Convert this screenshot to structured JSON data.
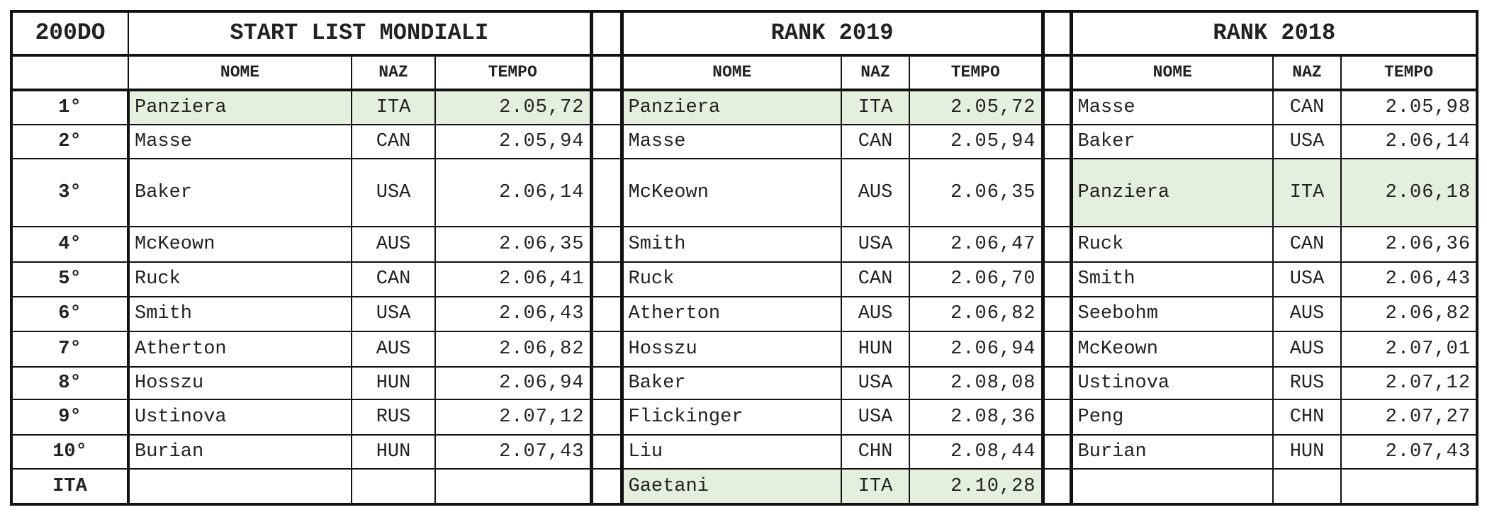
{
  "event": "200DO",
  "sections": [
    {
      "title": "START LIST MONDIALI",
      "headers": [
        "NOME",
        "NAZ",
        "TEMPO"
      ],
      "rows": [
        {
          "name": "Panziera",
          "naz": "ITA",
          "time": "2.05,72",
          "highlight": true
        },
        {
          "name": "Masse",
          "naz": "CAN",
          "time": "2.05,94",
          "highlight": false
        },
        {
          "name": "Baker",
          "naz": "USA",
          "time": "2.06,14",
          "highlight": false
        },
        {
          "name": "McKeown",
          "naz": "AUS",
          "time": "2.06,35",
          "highlight": false
        },
        {
          "name": "Ruck",
          "naz": "CAN",
          "time": "2.06,41",
          "highlight": false
        },
        {
          "name": "Smith",
          "naz": "USA",
          "time": "2.06,43",
          "highlight": false
        },
        {
          "name": "Atherton",
          "naz": "AUS",
          "time": "2.06,82",
          "highlight": false
        },
        {
          "name": "Hosszu",
          "naz": "HUN",
          "time": "2.06,94",
          "highlight": false
        },
        {
          "name": "Ustinova",
          "naz": "RUS",
          "time": "2.07,12",
          "highlight": false
        },
        {
          "name": "Burian",
          "naz": "HUN",
          "time": "2.07,43",
          "highlight": false
        },
        {
          "name": "",
          "naz": "",
          "time": "",
          "highlight": false
        }
      ]
    },
    {
      "title": "RANK 2019",
      "headers": [
        "NOME",
        "NAZ",
        "TEMPO"
      ],
      "rows": [
        {
          "name": "Panziera",
          "naz": "ITA",
          "time": "2.05,72",
          "highlight": true
        },
        {
          "name": "Masse",
          "naz": "CAN",
          "time": "2.05,94",
          "highlight": false
        },
        {
          "name": "McKeown",
          "naz": "AUS",
          "time": "2.06,35",
          "highlight": false
        },
        {
          "name": "Smith",
          "naz": "USA",
          "time": "2.06,47",
          "highlight": false
        },
        {
          "name": "Ruck",
          "naz": "CAN",
          "time": "2.06,70",
          "highlight": false
        },
        {
          "name": "Atherton",
          "naz": "AUS",
          "time": "2.06,82",
          "highlight": false
        },
        {
          "name": "Hosszu",
          "naz": "HUN",
          "time": "2.06,94",
          "highlight": false
        },
        {
          "name": "Baker",
          "naz": "USA",
          "time": "2.08,08",
          "highlight": false
        },
        {
          "name": "Flickinger",
          "naz": "USA",
          "time": "2.08,36",
          "highlight": false
        },
        {
          "name": "Liu",
          "naz": "CHN",
          "time": "2.08,44",
          "highlight": false
        },
        {
          "name": "Gaetani",
          "naz": "ITA",
          "time": "2.10,28",
          "highlight": true
        }
      ]
    },
    {
      "title": "RANK 2018",
      "headers": [
        "NOME",
        "NAZ",
        "TEMPO"
      ],
      "rows": [
        {
          "name": "Masse",
          "naz": "CAN",
          "time": "2.05,98",
          "highlight": false
        },
        {
          "name": "Baker",
          "naz": "USA",
          "time": "2.06,14",
          "highlight": false
        },
        {
          "name": "Panziera",
          "naz": "ITA",
          "time": "2.06,18",
          "highlight": true
        },
        {
          "name": "Ruck",
          "naz": "CAN",
          "time": "2.06,36",
          "highlight": false
        },
        {
          "name": "Smith",
          "naz": "USA",
          "time": "2.06,43",
          "highlight": false
        },
        {
          "name": "Seebohm",
          "naz": "AUS",
          "time": "2.06,82",
          "highlight": false
        },
        {
          "name": "McKeown",
          "naz": "AUS",
          "time": "2.07,01",
          "highlight": false
        },
        {
          "name": "Ustinova",
          "naz": "RUS",
          "time": "2.07,12",
          "highlight": false
        },
        {
          "name": "Peng",
          "naz": "CHN",
          "time": "2.07,27",
          "highlight": false
        },
        {
          "name": "Burian",
          "naz": "HUN",
          "time": "2.07,43",
          "highlight": false
        },
        {
          "name": "",
          "naz": "",
          "time": "",
          "highlight": false
        }
      ]
    }
  ],
  "ranks": [
    "1°",
    "2°",
    "3°",
    "4°",
    "5°",
    "6°",
    "7°",
    "8°",
    "9°",
    "10°",
    "ITA"
  ],
  "colors": {
    "highlight": "#e4f0dd",
    "border": "#111111"
  }
}
